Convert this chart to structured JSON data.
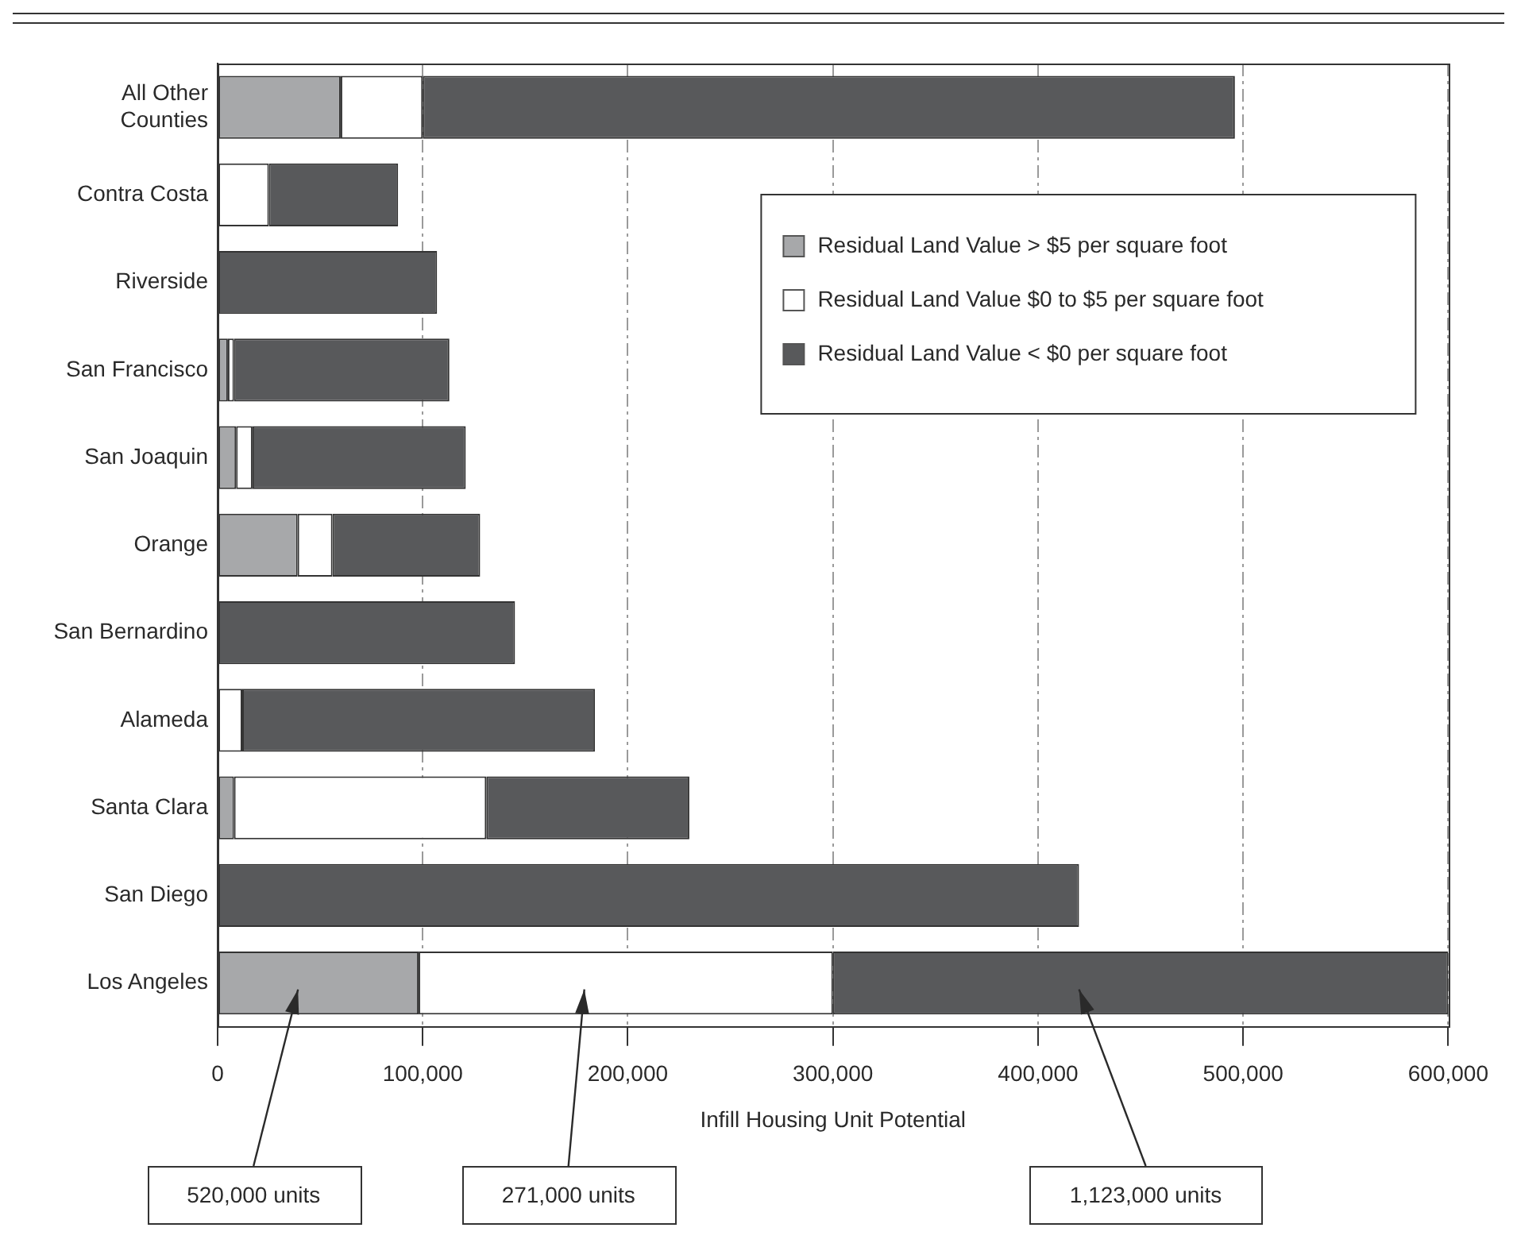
{
  "chart_data": {
    "type": "bar",
    "orientation": "horizontal",
    "stacked": true,
    "categories": [
      "All Other Counties",
      "Contra Costa",
      "Riverside",
      "San Francisco",
      "San Joaquin",
      "Orange",
      "San Bernardino",
      "Alameda",
      "Santa Clara",
      "San Diego",
      "Los Angeles"
    ],
    "series": [
      {
        "name": "Residual Land Value > $5 per square foot",
        "color": "#a7a8aa",
        "values": [
          60000,
          0,
          0,
          5000,
          9000,
          39000,
          0,
          0,
          8000,
          0,
          98000
        ]
      },
      {
        "name": "Residual Land Value $0 to $5 per square foot",
        "color": "#ffffff",
        "values": [
          40000,
          25000,
          0,
          3000,
          8000,
          17000,
          0,
          12000,
          123000,
          0,
          202000
        ]
      },
      {
        "name": "Residual Land Value < $0 per square foot",
        "color": "#58595b",
        "values": [
          396000,
          63000,
          107000,
          105000,
          104000,
          72000,
          145000,
          172000,
          99000,
          420000,
          300000
        ]
      }
    ],
    "xlim": [
      0,
      600000
    ],
    "xticks": [
      0,
      {
        "value": 100000,
        "label": "100,000"
      },
      {
        "value": 200000,
        "label": "200,000"
      },
      {
        "value": 300000,
        "label": "300,000"
      },
      {
        "value": 400000,
        "label": "400,000"
      },
      {
        "value": 500000,
        "label": "500,000"
      },
      {
        "value": 600000,
        "label": "600,000"
      }
    ],
    "xlabel": "Infill Housing Unit Potential",
    "grid": "x",
    "legend": "top right",
    "annotations": [
      "520,000 units",
      "271,000 units",
      "1,123,000 units"
    ]
  }
}
